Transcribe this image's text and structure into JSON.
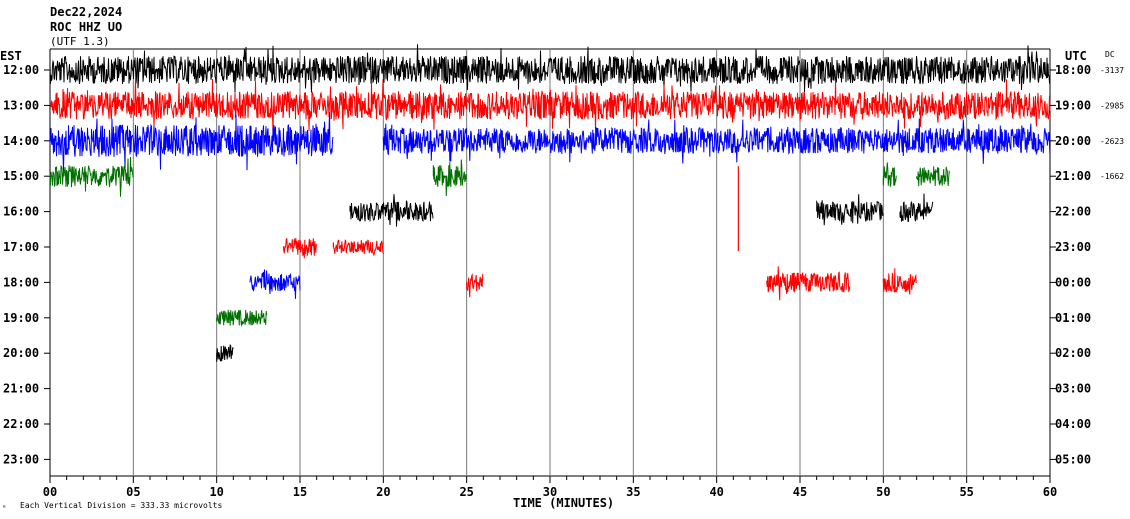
{
  "header": {
    "date": "Dec22,2024",
    "station": "ROC HHZ UO",
    "extra": "(UTF 1.3)"
  },
  "chart_data": {
    "type": "line",
    "title": "Dec22,2024",
    "left_timezone": "EST",
    "right_timezone": "UTC",
    "dc_header": "DC",
    "xlabel": "TIME (MINUTES)",
    "x_ticks": [
      "00",
      "05",
      "10",
      "15",
      "20",
      "25",
      "30",
      "35",
      "40",
      "45",
      "50",
      "55",
      "60"
    ],
    "xlim": [
      0,
      60
    ],
    "left_hours": [
      "12:00",
      "13:00",
      "14:00",
      "15:00",
      "16:00",
      "17:00",
      "18:00",
      "19:00",
      "20:00",
      "21:00",
      "22:00",
      "23:00"
    ],
    "right_hours": [
      "18:00",
      "19:00",
      "20:00",
      "21:00",
      "22:00",
      "23:00",
      "00:00",
      "01:00",
      "02:00",
      "03:00",
      "04:00",
      "05:00"
    ],
    "dc_values": [
      "-3137",
      "-2985",
      "-2623",
      "-1662"
    ],
    "scale_note": "Each Vertical Division =  333.33 microvolts",
    "colors": [
      "#000000",
      "#ff0000",
      "#0000ff",
      "#007000"
    ],
    "traces": [
      {
        "row": 0,
        "color": "#000000",
        "segments": [
          [
            0,
            60,
            14
          ]
        ]
      },
      {
        "row": 1,
        "color": "#ff0000",
        "segments": [
          [
            0,
            60,
            14
          ]
        ]
      },
      {
        "row": 2,
        "color": "#0000ff",
        "segments": [
          [
            0,
            17,
            16
          ],
          [
            20,
            60,
            13
          ]
        ]
      },
      {
        "row": 3,
        "color": "#007000",
        "segments": [
          [
            0,
            5,
            11
          ],
          [
            23,
            25,
            11
          ],
          [
            50,
            50.8,
            10
          ],
          [
            52,
            54,
            10
          ]
        ]
      },
      {
        "row": 4,
        "color": "#000000",
        "segments": [
          [
            18,
            23,
            10
          ],
          [
            46,
            50,
            10
          ],
          [
            51,
            53,
            10
          ]
        ]
      },
      {
        "row": 5,
        "color": "#ff0000",
        "segments": [
          [
            14,
            16,
            9
          ],
          [
            17,
            20,
            7
          ]
        ]
      },
      {
        "row": 6,
        "color": "#ff0000",
        "segments": [
          [
            25,
            26,
            9
          ],
          [
            43,
            48,
            10
          ],
          [
            50,
            52,
            10
          ]
        ]
      },
      {
        "row": 6,
        "color": "#0000ff",
        "segments": [
          [
            12,
            15,
            9
          ]
        ]
      },
      {
        "row": 7,
        "color": "#007000",
        "segments": [
          [
            10,
            13,
            8
          ]
        ]
      },
      {
        "row": 8,
        "color": "#000000",
        "segments": [
          [
            10,
            11,
            9
          ]
        ]
      }
    ],
    "spikes": [
      {
        "minute": 41.3,
        "row": 3,
        "color": "#ff0000",
        "up": 10,
        "down": 75
      }
    ]
  }
}
